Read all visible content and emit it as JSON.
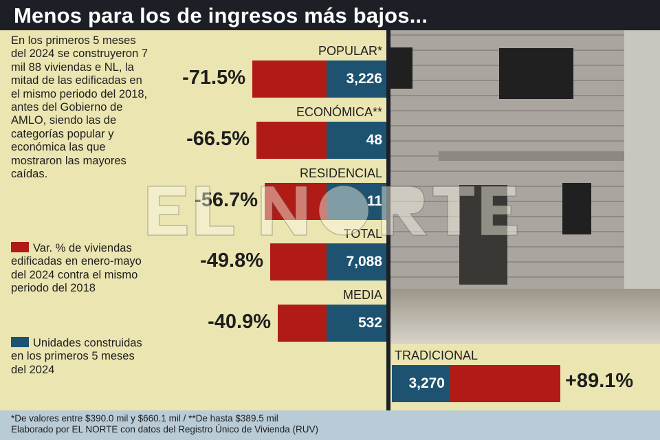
{
  "title": "Menos para los de ingresos más bajos...",
  "intro": "En los primeros 5 meses del 2024 se construyeron 7 mil 88 viviendas e NL, la mitad de las edificadas en el mismo periodo del 2018, antes del Gobierno de AMLO, siendo las de categorías popular y económica las que mostraron las mayores caídas.",
  "legend": {
    "red": "Var. % de viviendas edificadas en enero-mayo del 2024 contra el mismo periodo del 2018",
    "blue": "Unidades construidas en los primeros 5 meses del 2024"
  },
  "colors": {
    "red": "#b01b16",
    "blue": "#1d5370"
  },
  "watermark": "EL NORTE",
  "chart_data": {
    "type": "bar",
    "categories": [
      "POPULAR*",
      "ECONÓMICA**",
      "RESIDENCIAL",
      "TOTAL",
      "MEDIA",
      "TRADICIONAL"
    ],
    "series": [
      {
        "name": "Var. % 2024 vs 2018",
        "values": [
          -71.5,
          -66.5,
          -56.7,
          -49.8,
          -40.9,
          89.1
        ],
        "labels": [
          "-71.5%",
          "-66.5%",
          "-56.7%",
          "-49.8%",
          "-40.9%",
          "+89.1%"
        ]
      },
      {
        "name": "Unidades 2024",
        "values": [
          3226,
          48,
          11,
          7088,
          532,
          3270
        ],
        "labels": [
          "3,226",
          "48",
          "11",
          "7,088",
          "532",
          "3,270"
        ]
      }
    ]
  },
  "footer": {
    "line1": "*De valores entre $390.0 mil y $660.1 mil / **De hasta $389.5 mil",
    "line2": "Elaborado por EL NORTE con datos del Registro Único de Vivienda (RUV)"
  }
}
